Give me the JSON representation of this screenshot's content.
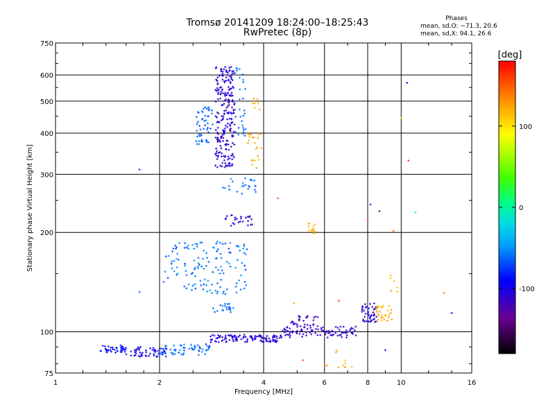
{
  "chart_data": {
    "type": "scatter",
    "title": "Tromsø 20141209 18:24:00–18:25:43",
    "subtitle": "RwPretec (8p)",
    "xlabel": "Frequency [MHz]",
    "ylabel": "Stationary phase Virtual Height [km]",
    "x_scale": "log",
    "y_scale": "log",
    "xlim": [
      1,
      16
    ],
    "ylim": [
      75,
      750
    ],
    "x_ticks": [
      1,
      2,
      4,
      6,
      8,
      10,
      16
    ],
    "y_ticks": [
      75,
      100,
      200,
      300,
      400,
      500,
      600,
      750
    ],
    "grid": true,
    "stats": {
      "title": "Phases",
      "o_line": "mean, sd,O: −71.3, 20.6",
      "x_line": "mean, sd,X:  94.1, 26.6"
    },
    "colorbar": {
      "label": "[deg]",
      "range": [
        -180,
        180
      ],
      "ticks": [
        100,
        0,
        -100
      ]
    },
    "clusters": [
      {
        "f": [
          1.35,
          1.6
        ],
        "h": [
          86,
          91
        ],
        "phase": [
          -80,
          -95
        ],
        "n": 40
      },
      {
        "f": [
          1.6,
          2.1
        ],
        "h": [
          84,
          90
        ],
        "phase": [
          -85,
          -110
        ],
        "n": 50
      },
      {
        "f": [
          2.0,
          2.8
        ],
        "h": [
          85,
          92
        ],
        "phase": [
          -50,
          -75
        ],
        "n": 60
      },
      {
        "f": [
          2.8,
          4.5
        ],
        "h": [
          93,
          98
        ],
        "phase": [
          -95,
          -115
        ],
        "n": 110
      },
      {
        "f": [
          4.5,
          7.5
        ],
        "h": [
          96,
          104
        ],
        "phase": [
          -100,
          -120
        ],
        "n": 90
      },
      {
        "f": [
          4.8,
          5.8
        ],
        "h": [
          101,
          112
        ],
        "phase": [
          -105,
          -125
        ],
        "n": 30
      },
      {
        "f": [
          7.7,
          8.5
        ],
        "h": [
          107,
          123
        ],
        "phase": [
          -95,
          -115
        ],
        "n": 45
      },
      {
        "f": [
          8.4,
          9.4
        ],
        "h": [
          107,
          120
        ],
        "phase": [
          110,
          130
        ],
        "n": 30
      },
      {
        "f": [
          2.9,
          3.3
        ],
        "h": [
          315,
          640
        ],
        "phase": [
          -95,
          -120
        ],
        "n": 230
      },
      {
        "f": [
          2.55,
          2.85
        ],
        "h": [
          370,
          480
        ],
        "phase": [
          -55,
          -70
        ],
        "n": 50
      },
      {
        "f": [
          3.3,
          3.55
        ],
        "h": [
          390,
          640
        ],
        "phase": [
          -50,
          -70
        ],
        "n": 30
      },
      {
        "f": [
          3.6,
          3.95
        ],
        "h": [
          310,
          400
        ],
        "phase": [
          110,
          130
        ],
        "n": 22
      },
      {
        "f": [
          3.7,
          3.9
        ],
        "h": [
          460,
          520
        ],
        "phase": [
          115,
          125
        ],
        "n": 8
      },
      {
        "f": [
          3.0,
          3.8
        ],
        "h": [
          262,
          292
        ],
        "phase": [
          -50,
          -65
        ],
        "n": 25
      },
      {
        "f": [
          3.05,
          3.75
        ],
        "h": [
          208,
          226
        ],
        "phase": [
          -100,
          -115
        ],
        "n": 25
      },
      {
        "f": [
          2.05,
          3.6
        ],
        "h": [
          130,
          188
        ],
        "phase": [
          -45,
          -75
        ],
        "n": 140
      },
      {
        "f": [
          2.85,
          3.3
        ],
        "h": [
          114,
          122
        ],
        "phase": [
          -55,
          -70
        ],
        "n": 20
      },
      {
        "f": [
          5.4,
          5.65
        ],
        "h": [
          198,
          214
        ],
        "phase": [
          115,
          125
        ],
        "n": 14
      },
      {
        "f": [
          9.3,
          9.8
        ],
        "h": [
          130,
          150
        ],
        "phase": [
          110,
          130
        ],
        "n": 6
      },
      {
        "f": [
          5.8,
          7.2
        ],
        "h": [
          76,
          88
        ],
        "phase": [
          110,
          140
        ],
        "n": 10
      }
    ],
    "points": [
      {
        "x": 1.75,
        "h": 310,
        "phase": -80
      },
      {
        "x": 1.75,
        "h": 132,
        "phase": -60
      },
      {
        "x": 4.4,
        "h": 254,
        "phase": 160
      },
      {
        "x": 8.0,
        "h": 218,
        "phase": 170
      },
      {
        "x": 8.15,
        "h": 243,
        "phase": -120
      },
      {
        "x": 8.65,
        "h": 232,
        "phase": -140
      },
      {
        "x": 9.5,
        "h": 202,
        "phase": 150
      },
      {
        "x": 10.4,
        "h": 568,
        "phase": -90
      },
      {
        "x": 11.0,
        "h": 230,
        "phase": 20
      },
      {
        "x": 10.5,
        "h": 330,
        "phase": 170
      },
      {
        "x": 10.0,
        "h": 445,
        "phase": 110
      },
      {
        "x": 13.3,
        "h": 131,
        "phase": 140
      },
      {
        "x": 14.0,
        "h": 114,
        "phase": -90
      },
      {
        "x": 9.0,
        "h": 88,
        "phase": -100
      },
      {
        "x": 6.6,
        "h": 124,
        "phase": 160
      },
      {
        "x": 4.9,
        "h": 122,
        "phase": 120
      },
      {
        "x": 5.2,
        "h": 82,
        "phase": 150
      }
    ]
  }
}
